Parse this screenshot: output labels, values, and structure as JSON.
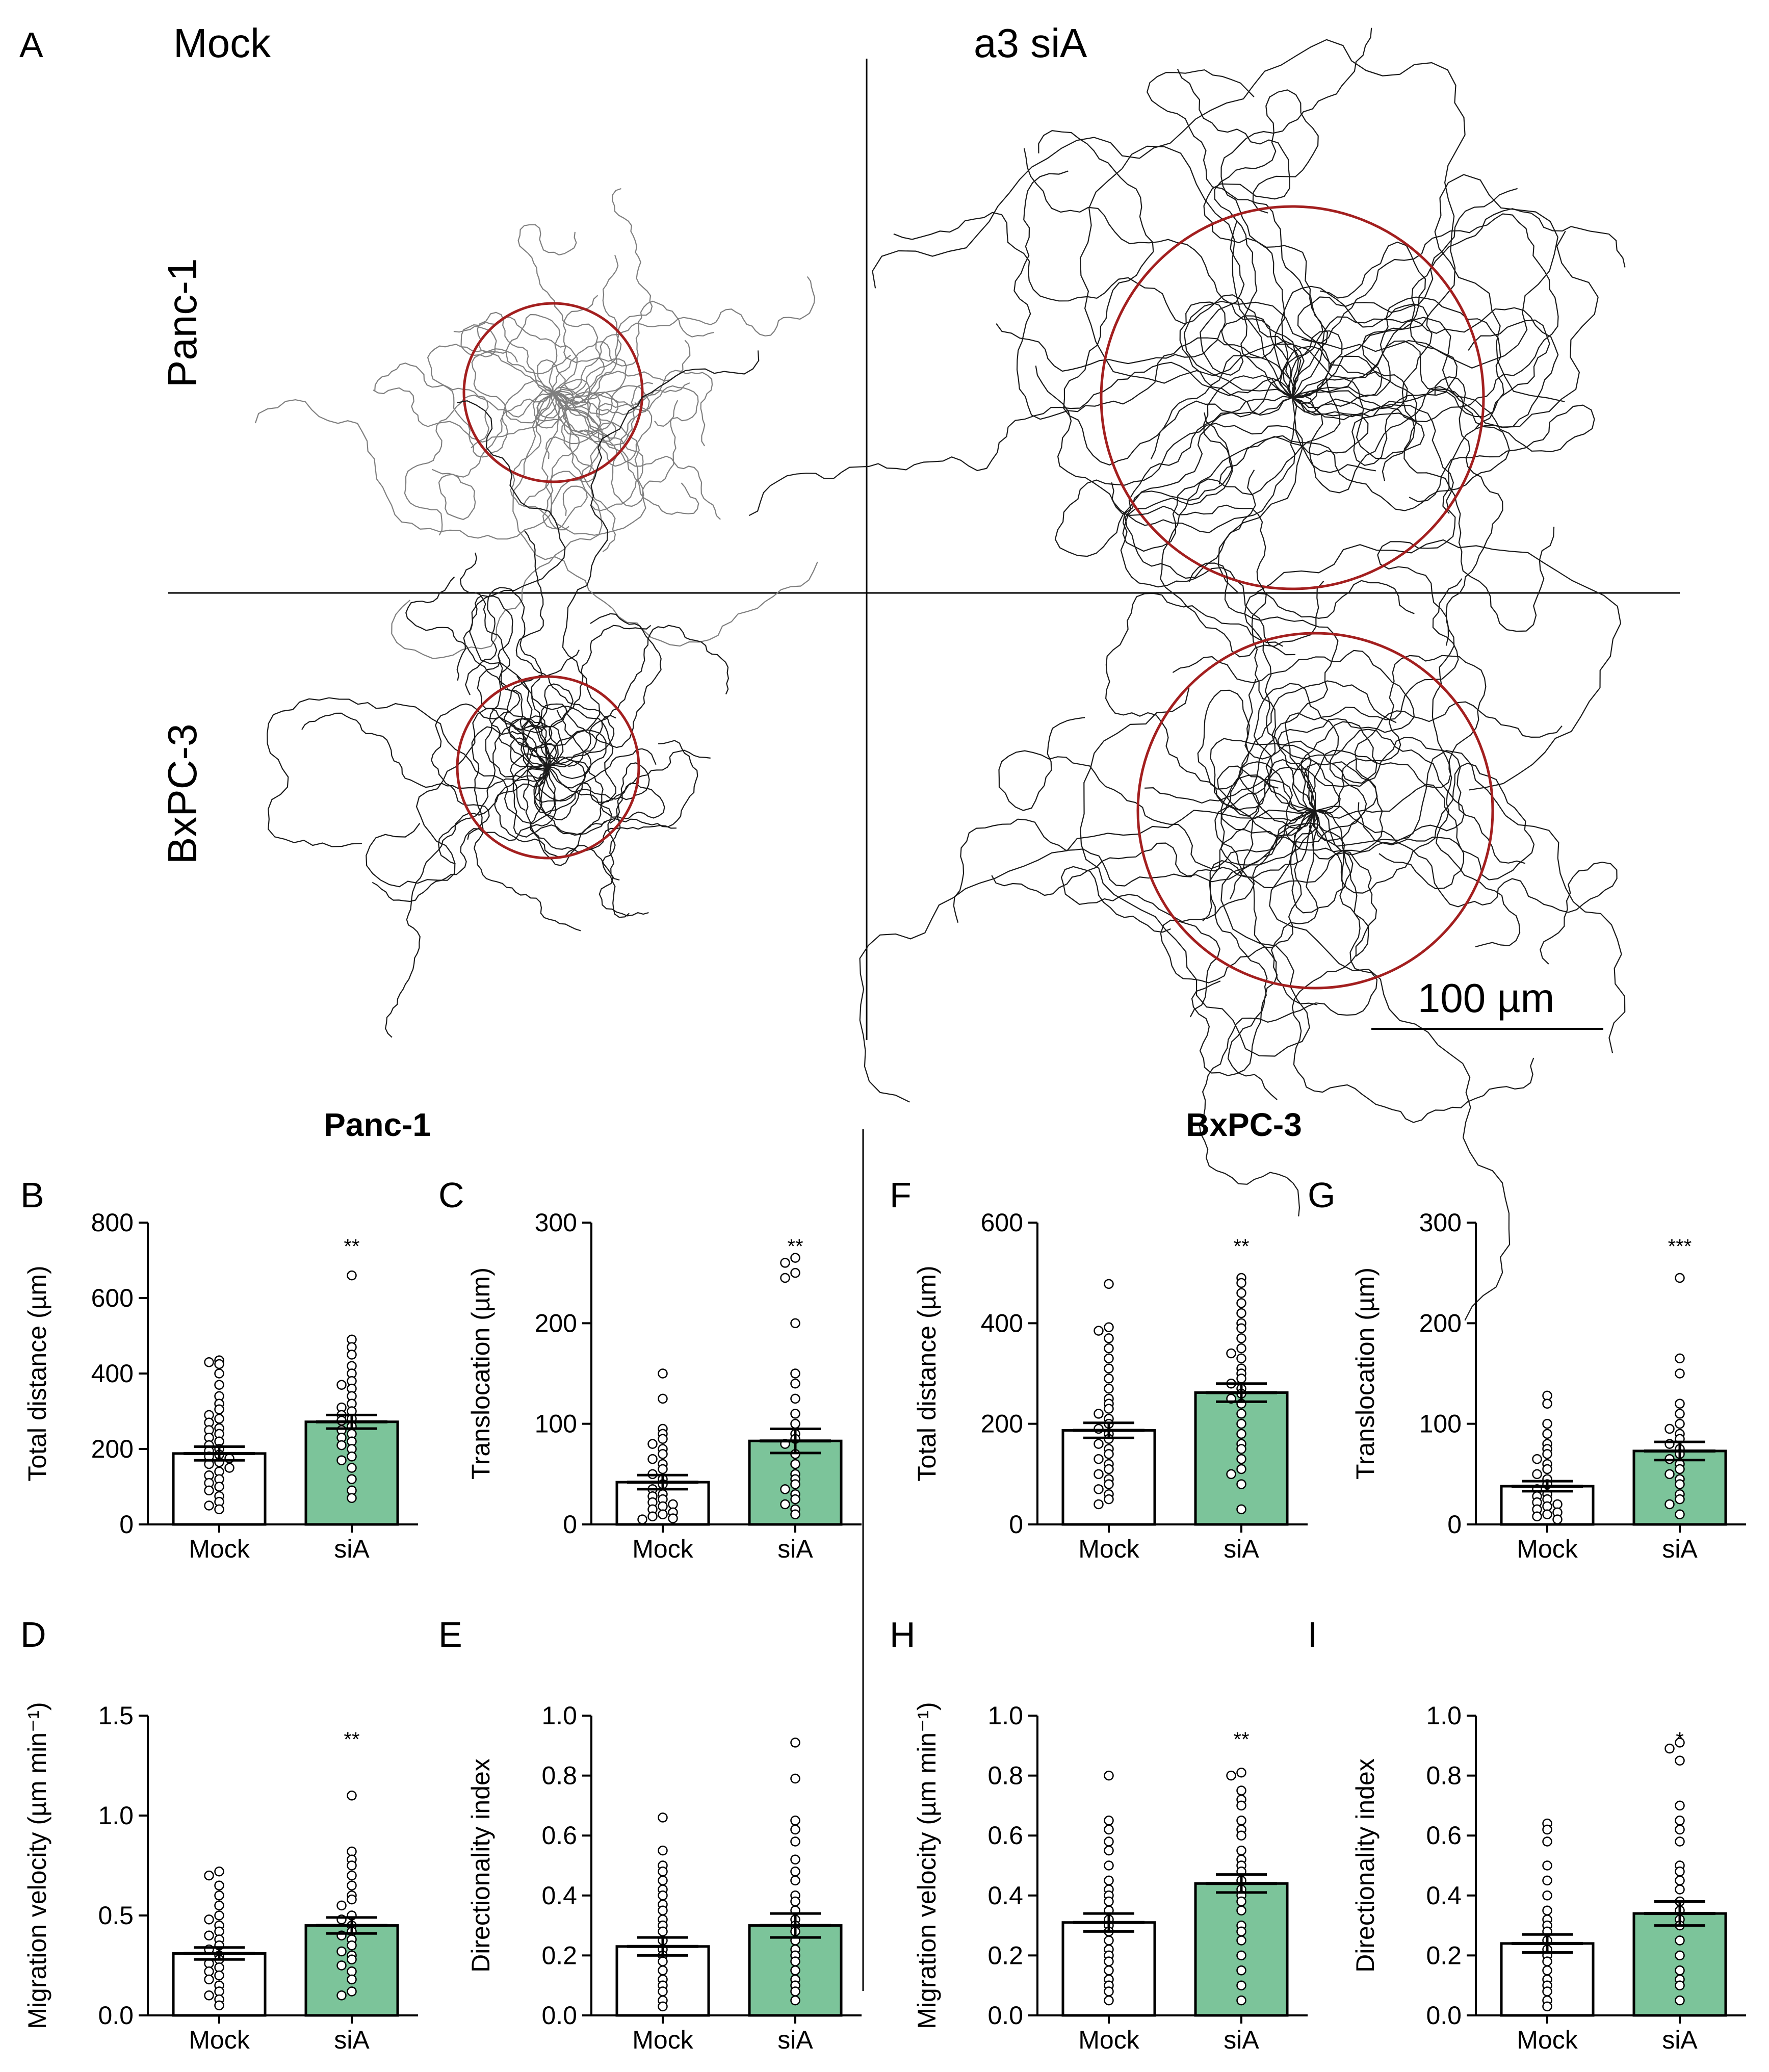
{
  "panel_a": {
    "letter": "A",
    "conditions": [
      "Mock",
      "a3 siA"
    ],
    "cell_lines": [
      "Panc-1",
      "BxPC-3"
    ],
    "scale_bar_label": "100 µm",
    "colors": {
      "mock_tracks": "#7f7f7f",
      "sia_tracks": "#1a1a1a",
      "circle": "#a31f1f"
    },
    "subpanels": [
      {
        "line": "Panc-1",
        "condition": "Mock"
      },
      {
        "line": "Panc-1",
        "condition": "a3 siA"
      },
      {
        "line": "BxPC-3",
        "condition": "Mock"
      },
      {
        "line": "BxPC-3",
        "condition": "a3 siA"
      }
    ]
  },
  "group_titles": [
    "Panc-1",
    "BxPC-3"
  ],
  "colors": {
    "mock_bar": "#ffffff",
    "sia_bar": "#7cc49a",
    "outline": "#000000"
  },
  "chart_data": [
    {
      "panel": "B",
      "type": "bar",
      "ylabel": "Total distance (µm)",
      "ylim": [
        0,
        800
      ],
      "yticks": [
        0,
        200,
        400,
        600,
        800
      ],
      "tick_labels": [
        "0",
        "200",
        "400",
        "600",
        "800"
      ],
      "categories": [
        "Mock",
        "siA"
      ],
      "significance": "**",
      "series": [
        {
          "name": "Mock",
          "mean": 188,
          "sem": 18,
          "points": [
            435,
            430,
            425,
            400,
            370,
            340,
            320,
            305,
            290,
            280,
            270,
            255,
            250,
            240,
            230,
            220,
            210,
            200,
            195,
            185,
            180,
            175,
            165,
            160,
            150,
            140,
            130,
            120,
            110,
            100,
            90,
            75,
            60,
            50,
            40
          ]
        },
        {
          "name": "siA",
          "mean": 272,
          "sem": 18,
          "points": [
            660,
            490,
            470,
            450,
            420,
            400,
            380,
            370,
            360,
            340,
            320,
            310,
            300,
            290,
            280,
            275,
            260,
            250,
            240,
            230,
            220,
            210,
            200,
            180,
            170,
            150,
            120,
            90,
            70
          ]
        }
      ]
    },
    {
      "panel": "C",
      "type": "bar",
      "ylabel": "Translocation (µm)",
      "ylim": [
        0,
        300
      ],
      "yticks": [
        0,
        100,
        200,
        300
      ],
      "tick_labels": [
        "0",
        "100",
        "200",
        "300"
      ],
      "categories": [
        "Mock",
        "siA"
      ],
      "significance": "**",
      "series": [
        {
          "name": "Mock",
          "mean": 42,
          "sem": 7,
          "points": [
            150,
            125,
            95,
            90,
            85,
            80,
            75,
            70,
            65,
            60,
            55,
            50,
            45,
            40,
            35,
            30,
            28,
            25,
            22,
            20,
            18,
            15,
            12,
            10,
            8,
            6,
            5
          ]
        },
        {
          "name": "siA",
          "mean": 83,
          "sem": 12,
          "points": [
            265,
            260,
            250,
            245,
            200,
            150,
            140,
            125,
            110,
            100,
            90,
            85,
            80,
            70,
            60,
            50,
            45,
            40,
            35,
            30,
            25,
            20,
            15,
            10
          ]
        }
      ]
    },
    {
      "panel": "F",
      "type": "bar",
      "ylabel": "Total distance (µm)",
      "ylim": [
        0,
        600
      ],
      "yticks": [
        0,
        200,
        400,
        600
      ],
      "tick_labels": [
        "0",
        "200",
        "400",
        "600"
      ],
      "categories": [
        "Mock",
        "siA"
      ],
      "significance": "**",
      "series": [
        {
          "name": "Mock",
          "mean": 187,
          "sem": 15,
          "points": [
            478,
            392,
            385,
            370,
            350,
            330,
            310,
            290,
            270,
            250,
            240,
            230,
            220,
            210,
            200,
            190,
            180,
            170,
            160,
            150,
            140,
            130,
            120,
            110,
            100,
            90,
            80,
            70,
            60,
            50,
            40
          ]
        },
        {
          "name": "siA",
          "mean": 262,
          "sem": 18,
          "points": [
            490,
            480,
            460,
            440,
            420,
            400,
            390,
            370,
            350,
            340,
            330,
            310,
            300,
            290,
            280,
            270,
            260,
            250,
            240,
            220,
            200,
            180,
            160,
            150,
            130,
            110,
            100,
            80,
            30
          ]
        }
      ]
    },
    {
      "panel": "G",
      "type": "bar",
      "ylabel": "Translocation (µm)",
      "ylim": [
        0,
        300
      ],
      "yticks": [
        0,
        100,
        200,
        300
      ],
      "tick_labels": [
        "0",
        "100",
        "200",
        "300"
      ],
      "categories": [
        "Mock",
        "siA"
      ],
      "significance": "***",
      "series": [
        {
          "name": "Mock",
          "mean": 38,
          "sem": 5,
          "points": [
            128,
            120,
            100,
            90,
            80,
            75,
            70,
            65,
            60,
            55,
            50,
            45,
            40,
            35,
            30,
            28,
            25,
            22,
            20,
            18,
            15,
            12,
            10,
            8,
            5
          ]
        },
        {
          "name": "siA",
          "mean": 73,
          "sem": 9,
          "points": [
            245,
            165,
            150,
            120,
            110,
            100,
            95,
            90,
            85,
            80,
            75,
            70,
            65,
            60,
            55,
            50,
            45,
            40,
            30,
            25,
            20,
            10
          ]
        }
      ]
    },
    {
      "panel": "D",
      "type": "bar",
      "ylabel": "Migration velocity (µm min⁻¹)",
      "ylim": [
        0,
        1.5
      ],
      "yticks": [
        0,
        0.5,
        1.0,
        1.5
      ],
      "tick_labels": [
        "0.0",
        "0.5",
        "1.0",
        "1.5"
      ],
      "categories": [
        "Mock",
        "siA"
      ],
      "significance": "**",
      "series": [
        {
          "name": "Mock",
          "mean": 0.31,
          "sem": 0.03,
          "points": [
            0.72,
            0.7,
            0.65,
            0.6,
            0.55,
            0.5,
            0.48,
            0.45,
            0.42,
            0.4,
            0.38,
            0.35,
            0.33,
            0.3,
            0.28,
            0.26,
            0.24,
            0.22,
            0.2,
            0.18,
            0.15,
            0.12,
            0.1,
            0.08,
            0.05
          ]
        },
        {
          "name": "siA",
          "mean": 0.45,
          "sem": 0.04,
          "points": [
            1.1,
            0.82,
            0.78,
            0.75,
            0.7,
            0.65,
            0.6,
            0.58,
            0.55,
            0.5,
            0.48,
            0.45,
            0.42,
            0.4,
            0.38,
            0.35,
            0.32,
            0.3,
            0.28,
            0.25,
            0.22,
            0.18,
            0.12,
            0.1
          ]
        }
      ]
    },
    {
      "panel": "E",
      "type": "bar",
      "ylabel": "Directionality index",
      "ylim": [
        0,
        1.0
      ],
      "yticks": [
        0,
        0.2,
        0.4,
        0.6,
        0.8,
        1.0
      ],
      "tick_labels": [
        "0.0",
        "0.2",
        "0.4",
        "0.6",
        "0.8",
        "1.0"
      ],
      "categories": [
        "Mock",
        "siA"
      ],
      "significance": "",
      "series": [
        {
          "name": "Mock",
          "mean": 0.23,
          "sem": 0.03,
          "points": [
            0.66,
            0.55,
            0.5,
            0.48,
            0.45,
            0.42,
            0.4,
            0.37,
            0.35,
            0.32,
            0.3,
            0.28,
            0.25,
            0.22,
            0.2,
            0.18,
            0.15,
            0.12,
            0.1,
            0.08,
            0.05,
            0.03
          ]
        },
        {
          "name": "siA",
          "mean": 0.3,
          "sem": 0.04,
          "points": [
            0.91,
            0.79,
            0.65,
            0.62,
            0.58,
            0.52,
            0.48,
            0.45,
            0.4,
            0.38,
            0.35,
            0.32,
            0.3,
            0.28,
            0.25,
            0.22,
            0.2,
            0.18,
            0.15,
            0.12,
            0.1,
            0.08,
            0.05
          ]
        }
      ]
    },
    {
      "panel": "H",
      "type": "bar",
      "ylabel": "Migration velocity (µm min⁻¹)",
      "ylim": [
        0,
        1.0
      ],
      "yticks": [
        0,
        0.2,
        0.4,
        0.6,
        0.8,
        1.0
      ],
      "tick_labels": [
        "0.0",
        "0.2",
        "0.4",
        "0.6",
        "0.8",
        "1.0"
      ],
      "categories": [
        "Mock",
        "siA"
      ],
      "significance": "**",
      "series": [
        {
          "name": "Mock",
          "mean": 0.31,
          "sem": 0.03,
          "points": [
            0.8,
            0.65,
            0.62,
            0.58,
            0.55,
            0.5,
            0.45,
            0.42,
            0.4,
            0.38,
            0.35,
            0.32,
            0.3,
            0.28,
            0.25,
            0.22,
            0.2,
            0.18,
            0.15,
            0.12,
            0.1,
            0.08,
            0.05
          ]
        },
        {
          "name": "siA",
          "mean": 0.44,
          "sem": 0.03,
          "points": [
            0.81,
            0.8,
            0.75,
            0.72,
            0.7,
            0.65,
            0.62,
            0.6,
            0.55,
            0.52,
            0.5,
            0.48,
            0.45,
            0.42,
            0.4,
            0.38,
            0.35,
            0.3,
            0.28,
            0.25,
            0.2,
            0.15,
            0.1,
            0.05
          ]
        }
      ]
    },
    {
      "panel": "I",
      "type": "bar",
      "ylabel": "Directionality index",
      "ylim": [
        0,
        1.0
      ],
      "yticks": [
        0,
        0.2,
        0.4,
        0.6,
        0.8,
        1.0
      ],
      "tick_labels": [
        "0.0",
        "0.2",
        "0.4",
        "0.6",
        "0.8",
        "1.0"
      ],
      "categories": [
        "Mock",
        "siA"
      ],
      "significance": "*",
      "series": [
        {
          "name": "Mock",
          "mean": 0.24,
          "sem": 0.03,
          "points": [
            0.64,
            0.62,
            0.58,
            0.5,
            0.45,
            0.4,
            0.35,
            0.32,
            0.3,
            0.28,
            0.25,
            0.22,
            0.2,
            0.18,
            0.15,
            0.12,
            0.1,
            0.08,
            0.05,
            0.03
          ]
        },
        {
          "name": "siA",
          "mean": 0.34,
          "sem": 0.04,
          "points": [
            0.91,
            0.89,
            0.85,
            0.7,
            0.65,
            0.62,
            0.58,
            0.5,
            0.48,
            0.45,
            0.42,
            0.38,
            0.35,
            0.32,
            0.3,
            0.25,
            0.2,
            0.15,
            0.12,
            0.1,
            0.05
          ]
        }
      ]
    }
  ]
}
